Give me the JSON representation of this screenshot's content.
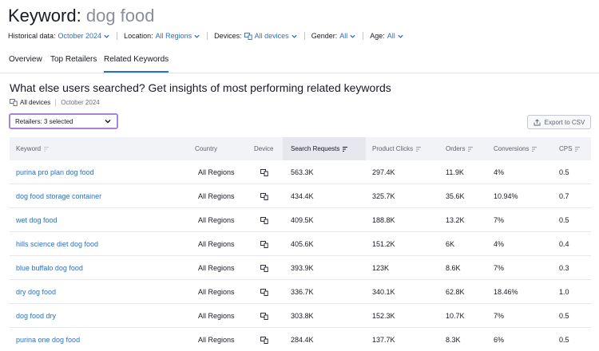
{
  "header": {
    "title_label": "Keyword:",
    "title_keyword": "dog food"
  },
  "filters": {
    "historical": {
      "label": "Historical data:",
      "value": "October 2024"
    },
    "location": {
      "label": "Location:",
      "value": "All Regions"
    },
    "devices": {
      "label": "Devices:",
      "value": "All devices"
    },
    "gender": {
      "label": "Gender:",
      "value": "All"
    },
    "age": {
      "label": "Age:",
      "value": "All"
    }
  },
  "tabs": [
    {
      "label": "Overview",
      "active": false
    },
    {
      "label": "Top Retailers",
      "active": false
    },
    {
      "label": "Related Keywords",
      "active": true
    }
  ],
  "section": {
    "title": "What else users searched? Get insights of most performing related keywords",
    "device": "All devices",
    "date": "October 2024"
  },
  "retailers": {
    "label": "Retailers: 3 selected"
  },
  "export": {
    "label": "Export to CSV"
  },
  "table": {
    "columns": [
      "Keyword",
      "Country",
      "Device",
      "Search Requests",
      "Product Clicks",
      "Orders",
      "Conversions",
      "CPS"
    ],
    "rows": [
      {
        "keyword": "purina pro plan dog food",
        "country": "All Regions",
        "search_requests": "563.3K",
        "product_clicks": "297.4K",
        "orders": "11.9K",
        "conversions": "4%",
        "cps": "0.5"
      },
      {
        "keyword": "dog food storage container",
        "country": "All Regions",
        "search_requests": "434.4K",
        "product_clicks": "325.7K",
        "orders": "35.6K",
        "conversions": "10.94%",
        "cps": "0.7"
      },
      {
        "keyword": "wet dog food",
        "country": "All Regions",
        "search_requests": "409.5K",
        "product_clicks": "188.8K",
        "orders": "13.2K",
        "conversions": "7%",
        "cps": "0.5"
      },
      {
        "keyword": "hills science diet dog food",
        "country": "All Regions",
        "search_requests": "405.6K",
        "product_clicks": "151.2K",
        "orders": "6K",
        "conversions": "4%",
        "cps": "0.4"
      },
      {
        "keyword": "blue buffalo dog food",
        "country": "All Regions",
        "search_requests": "393.9K",
        "product_clicks": "123K",
        "orders": "8.6K",
        "conversions": "7%",
        "cps": "0.3"
      },
      {
        "keyword": "dry dog food",
        "country": "All Regions",
        "search_requests": "336.7K",
        "product_clicks": "340.1K",
        "orders": "62.8K",
        "conversions": "18.46%",
        "cps": "1.0"
      },
      {
        "keyword": "dog food dry",
        "country": "All Regions",
        "search_requests": "303.8K",
        "product_clicks": "152.3K",
        "orders": "10.7K",
        "conversions": "7%",
        "cps": "0.5"
      },
      {
        "keyword": "purina one dog food",
        "country": "All Regions",
        "search_requests": "284.4K",
        "product_clicks": "137.7K",
        "orders": "8.3K",
        "conversions": "6%",
        "cps": "0.5"
      }
    ]
  },
  "colors": {
    "accent": "#2e6fbd",
    "highlight_border": "#a884d6",
    "header_bg": "#f2f3f6"
  }
}
